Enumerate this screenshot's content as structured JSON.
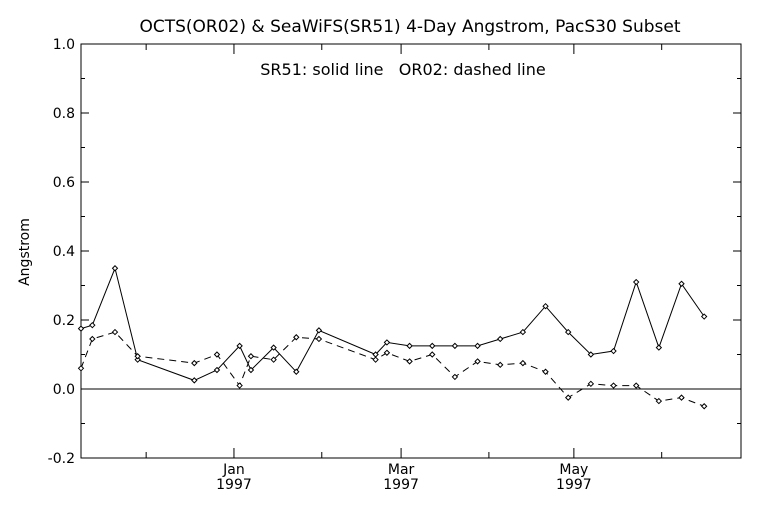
{
  "chart_data": {
    "type": "line",
    "title": "OCTS(OR02) & SeaWiFS(SR51) 4-Day Angstrom, PacS30 Subset",
    "annotation": "SR51: solid line   OR02: dashed line",
    "xlabel": "",
    "ylabel": "Angstrom",
    "ylim": [
      -0.2,
      1.0
    ],
    "yticks": [
      "-0.2",
      "0.0",
      "0.2",
      "0.4",
      "0.6",
      "0.8",
      "1.0"
    ],
    "xlim": [
      "1996-11-08",
      "1997-06-29"
    ],
    "xticks": [
      {
        "date": "1997-01-01",
        "line1": "Jan",
        "line2": "1997"
      },
      {
        "date": "1997-03-01",
        "line1": "Mar",
        "line2": "1997"
      },
      {
        "date": "1997-05-01",
        "line1": "May",
        "line2": "1997"
      }
    ],
    "minor_ticks": [
      "1996-12-01",
      "1997-02-01",
      "1997-04-01",
      "1997-06-01"
    ],
    "zero_line": true,
    "series": [
      {
        "name": "SR51",
        "style": "solid",
        "color": "#000000",
        "points": [
          [
            "1996-11-08",
            0.175
          ],
          [
            "1996-11-12",
            0.185
          ],
          [
            "1996-11-20",
            0.35
          ],
          [
            "1996-11-28",
            0.085
          ],
          [
            "1996-12-18",
            0.025
          ],
          [
            "1996-12-26",
            0.055
          ],
          [
            "1997-01-03",
            0.125
          ],
          [
            "1997-01-07",
            0.055
          ],
          [
            "1997-01-15",
            0.12
          ],
          [
            "1997-01-23",
            0.05
          ],
          [
            "1997-01-31",
            0.17
          ],
          [
            "1997-02-20",
            0.1
          ],
          [
            "1997-02-24",
            0.135
          ],
          [
            "1997-03-04",
            0.125
          ],
          [
            "1997-03-12",
            0.125
          ],
          [
            "1997-03-20",
            0.125
          ],
          [
            "1997-03-28",
            0.125
          ],
          [
            "1997-04-05",
            0.145
          ],
          [
            "1997-04-13",
            0.165
          ],
          [
            "1997-04-21",
            0.24
          ],
          [
            "1997-04-29",
            0.165
          ],
          [
            "1997-05-07",
            0.1
          ],
          [
            "1997-05-15",
            0.11
          ],
          [
            "1997-05-23",
            0.31
          ],
          [
            "1997-05-31",
            0.12
          ],
          [
            "1997-06-08",
            0.305
          ],
          [
            "1997-06-16",
            0.21
          ]
        ]
      },
      {
        "name": "OR02",
        "style": "dashed",
        "color": "#000000",
        "points": [
          [
            "1996-11-08",
            0.06
          ],
          [
            "1996-11-12",
            0.145
          ],
          [
            "1996-11-20",
            0.165
          ],
          [
            "1996-11-28",
            0.095
          ],
          [
            "1996-12-18",
            0.075
          ],
          [
            "1996-12-26",
            0.1
          ],
          [
            "1997-01-03",
            0.01
          ],
          [
            "1997-01-07",
            0.095
          ],
          [
            "1997-01-15",
            0.085
          ],
          [
            "1997-01-23",
            0.15
          ],
          [
            "1997-01-31",
            0.145
          ],
          [
            "1997-02-20",
            0.085
          ],
          [
            "1997-02-24",
            0.105
          ],
          [
            "1997-03-04",
            0.08
          ],
          [
            "1997-03-12",
            0.1
          ],
          [
            "1997-03-20",
            0.035
          ],
          [
            "1997-03-28",
            0.08
          ],
          [
            "1997-04-05",
            0.07
          ],
          [
            "1997-04-13",
            0.075
          ],
          [
            "1997-04-21",
            0.05
          ],
          [
            "1997-04-29",
            -0.025
          ],
          [
            "1997-05-07",
            0.015
          ],
          [
            "1997-05-15",
            0.01
          ],
          [
            "1997-05-23",
            0.01
          ],
          [
            "1997-05-31",
            -0.035
          ],
          [
            "1997-06-08",
            -0.025
          ],
          [
            "1997-06-16",
            -0.05
          ]
        ]
      }
    ]
  }
}
